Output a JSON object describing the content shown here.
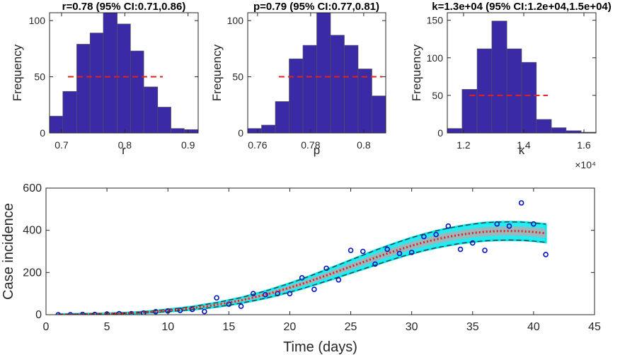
{
  "chart_data": [
    {
      "type": "histogram",
      "title": "r=0.78 (95% CI:0.71,0.86)",
      "xlabel": "r",
      "ylabel": "Frequency",
      "bins": [
        0.681,
        0.702,
        0.724,
        0.745,
        0.766,
        0.788,
        0.809,
        0.83,
        0.852,
        0.873,
        0.894,
        0.916
      ],
      "counts": [
        15,
        37,
        79,
        89,
        110,
        97,
        73,
        41,
        23,
        4,
        3
      ],
      "color": "#3b2aa6",
      "xlim": [
        0.681,
        0.916
      ],
      "ylim": [
        0,
        107
      ],
      "xticks": [
        0.7,
        0.8,
        0.9
      ],
      "yticks": [
        0,
        50,
        100
      ],
      "ci_line": {
        "x": [
          0.71,
          0.86
        ],
        "y": 50,
        "color": "#e3201b"
      }
    },
    {
      "type": "histogram",
      "title": "p=0.79 (95% CI:0.77,0.81)",
      "xlabel": "p",
      "ylabel": "Frequency",
      "bins": [
        0.7563,
        0.7615,
        0.7667,
        0.7719,
        0.7771,
        0.7823,
        0.7875,
        0.7927,
        0.7979,
        0.8031,
        0.8083
      ],
      "counts": [
        4,
        7,
        28,
        66,
        78,
        110,
        87,
        78,
        57,
        33
      ],
      "color": "#3b2aa6",
      "xlim": [
        0.7563,
        0.8083
      ],
      "ylim": [
        0,
        107
      ],
      "xticks": [
        0.76,
        0.78,
        0.8
      ],
      "yticks": [
        0,
        50,
        100
      ],
      "ci_line": {
        "x": [
          0.768,
          0.807
        ],
        "y": 50,
        "color": "#e3201b"
      }
    },
    {
      "type": "histogram",
      "title": "k=1.3e+04 (95% CI:1.2e+04,1.5e+04)",
      "xlabel": "k",
      "ylabel": "Frequency",
      "x_exponent": "×10⁴",
      "bins": [
        1.146,
        1.195,
        1.245,
        1.294,
        1.344,
        1.393,
        1.442,
        1.492,
        1.541,
        1.591,
        1.64
      ],
      "counts": [
        6,
        58,
        112,
        149,
        112,
        94,
        18,
        7,
        3,
        1
      ],
      "color": "#3b2aa6",
      "xlim": [
        1.146,
        1.64
      ],
      "ylim": [
        0,
        160
      ],
      "xticks": [
        1.2,
        1.4,
        1.6
      ],
      "yticks": [
        0,
        50,
        100,
        150
      ],
      "ci_line": {
        "x": [
          1.22,
          1.48
        ],
        "y": 50,
        "color": "#e3201b"
      }
    },
    {
      "type": "line",
      "xlabel": "Time (days)",
      "ylabel": "Case incidence",
      "x": [
        1,
        2,
        3,
        4,
        5,
        6,
        7,
        8,
        9,
        10,
        11,
        12,
        13,
        14,
        15,
        16,
        17,
        18,
        19,
        20,
        21,
        22,
        23,
        24,
        25,
        26,
        27,
        28,
        29,
        30,
        31,
        32,
        33,
        34,
        35,
        36,
        37,
        38,
        39,
        40,
        41
      ],
      "xlim": [
        0,
        45
      ],
      "ylim": [
        0,
        600
      ],
      "xticks": [
        0,
        5,
        10,
        15,
        20,
        25,
        30,
        35,
        40,
        45
      ],
      "yticks": [
        0,
        200,
        400,
        600
      ],
      "band_color": "#00e8ee",
      "series": [
        {
          "style": "markers",
          "color": "#0010c8",
          "values": [
            0,
            0,
            1,
            1,
            3,
            5,
            5,
            8,
            14,
            18,
            20,
            25,
            15,
            80,
            50,
            40,
            100,
            95,
            100,
            100,
            175,
            120,
            220,
            165,
            305,
            300,
            240,
            310,
            290,
            295,
            370,
            380,
            420,
            310,
            340,
            305,
            430,
            420,
            530,
            430,
            285
          ]
        },
        {
          "style": "dashed",
          "color": "#333333",
          "values": [
            0,
            0,
            1,
            2,
            3,
            4,
            6,
            8,
            11,
            15,
            19,
            24,
            30,
            37,
            45,
            55,
            66,
            78,
            92,
            107,
            123,
            141,
            159,
            178,
            197,
            216,
            235,
            254,
            272,
            289,
            304,
            317,
            328,
            338,
            345,
            350,
            353,
            354,
            353,
            349,
            343
          ]
        },
        {
          "style": "dashed",
          "color": "#333333",
          "values": [
            2,
            3,
            4,
            5,
            6,
            8,
            10,
            14,
            19,
            25,
            31,
            38,
            48,
            57,
            69,
            81,
            96,
            112,
            130,
            149,
            169,
            191,
            213,
            236,
            259,
            282,
            305,
            326,
            346,
            365,
            382,
            397,
            410,
            420,
            429,
            436,
            439,
            440,
            439,
            435,
            429
          ]
        },
        {
          "style": "dotted",
          "color": "#e3201b",
          "values": [
            1,
            1,
            2,
            3,
            4,
            6,
            8,
            11,
            15,
            20,
            25,
            31,
            39,
            47,
            57,
            68,
            81,
            95,
            111,
            128,
            146,
            166,
            186,
            207,
            228,
            249,
            270,
            290,
            309,
            327,
            343,
            357,
            369,
            379,
            387,
            393,
            396,
            397,
            396,
            392,
            386
          ]
        }
      ]
    }
  ]
}
